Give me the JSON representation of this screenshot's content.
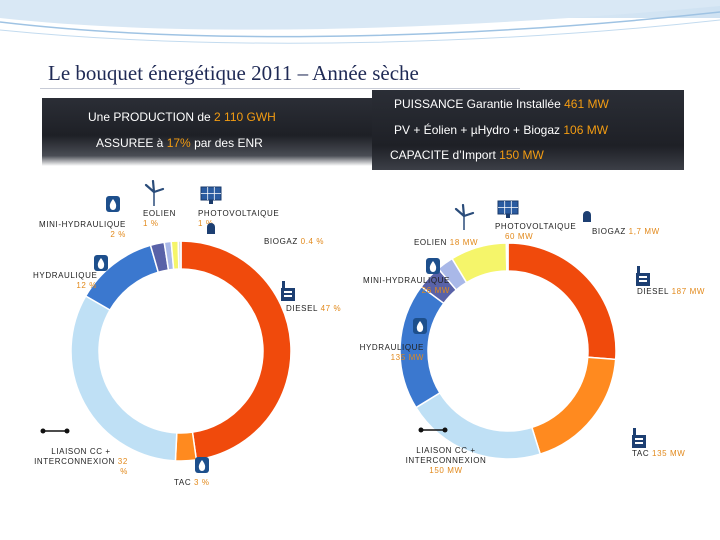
{
  "slide": {
    "title": "Le bouquet énergétique 2011 – Année sèche"
  },
  "left_box": {
    "line1_prefix": "Une PRODUCTION de",
    "line1_value": "2 110 GWH",
    "line2_prefix": "ASSUREE à",
    "line2_value": "17%",
    "line2_suffix": "par des ENR"
  },
  "right_box": {
    "line1_prefix": "PUISSANCE Garantie Installée",
    "line1_value": "461 MW",
    "line2_prefix": "PV + Éolien + µHydro + Biogaz",
    "line2_value": "106 MW",
    "line3_prefix": "CAPACITE d’Import",
    "line3_value": "150 MW"
  },
  "left_chart_labels": {
    "eolien": {
      "name": "EOLIEN",
      "value": "1 %"
    },
    "photovoltaique": {
      "name": "PHOTOVOLTAIQUE",
      "value": "1 %"
    },
    "mini_hydraulique": {
      "name": "MINI-HYDRAULIQUE",
      "value": "2 %"
    },
    "biogaz": {
      "name": "BIOGAZ",
      "value": "0.4 %"
    },
    "hydraulique": {
      "name": "HYDRAULIQUE",
      "value": "12 %"
    },
    "diesel": {
      "name": "DIESEL",
      "value": "47 %"
    },
    "liaison": {
      "name1": "LIAISON CC +",
      "name2": "INTERCONNEXION",
      "value": "32",
      "value2": "%"
    },
    "tac": {
      "name": "TAC",
      "value": "3 %"
    }
  },
  "right_chart_labels": {
    "eolien": {
      "name": "EOLIEN",
      "value": "18 MW"
    },
    "photovoltaique": {
      "name": "PHOTOVOLTAIQUE",
      "value": "60 MW"
    },
    "biogaz": {
      "name": "BIOGAZ",
      "value": "1,7 MW"
    },
    "mini_hydraulique": {
      "name": "MINI-HYDRAULIQUE",
      "value": "26 MW"
    },
    "diesel": {
      "name": "DIESEL",
      "value": "187 MW"
    },
    "hydraulique": {
      "name": "HYDRAULIQUE",
      "value": "135 MW"
    },
    "liaison": {
      "name1": "LIAISON CC +",
      "name2": "INTERCONNEXION",
      "value": "150 MW"
    },
    "tac": {
      "name": "TAC",
      "value": "135 MW"
    }
  },
  "colors": {
    "diesel": "#f04a0c",
    "tac": "#ff8a1f",
    "liaison": "#bfe0f5",
    "hydraulique": "#3b78cf",
    "mini_hydraulique": "#5962a8",
    "eolien": "#a9b8e8",
    "photovoltaique": "#f5f56a",
    "biogaz": "#d8dde6",
    "title": "#1f2a55",
    "value_accent": "#e2891b"
  },
  "chart_data": [
    {
      "type": "pie",
      "title": "",
      "categories": [
        "Diesel",
        "TAC",
        "Liaison CC + Interconnexion",
        "Hydraulique",
        "Mini-hydraulique",
        "Eolien",
        "Photovoltaique",
        "Biogaz"
      ],
      "values": [
        47,
        3,
        32,
        12,
        2,
        1,
        1,
        0.4
      ],
      "unit": "%"
    },
    {
      "type": "pie",
      "title": "",
      "categories": [
        "Diesel",
        "TAC",
        "Liaison CC + Interconnexion",
        "Hydraulique",
        "Mini-hydraulique",
        "Eolien",
        "Photovoltaique",
        "Biogaz"
      ],
      "values": [
        187,
        135,
        150,
        135,
        26,
        18,
        60,
        1.7
      ],
      "unit": "MW"
    }
  ]
}
